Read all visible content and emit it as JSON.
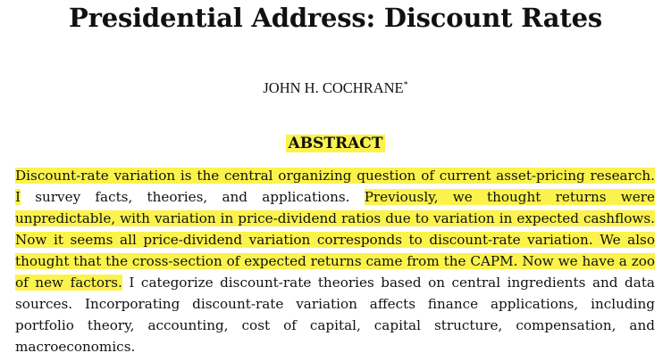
{
  "paper": {
    "title": "Presidential Address: Discount Rates",
    "author": "JOHN H. COCHRANE",
    "author_mark": "*",
    "abstract_heading": "ABSTRACT",
    "highlight_color": "#fbf34c",
    "abstract_segments": [
      {
        "text": "Discount-rate variation is the central organizing question of current asset-pricing research. I",
        "highlighted": true
      },
      {
        "text": " survey facts, theories, and applications. ",
        "highlighted": false
      },
      {
        "text": "Previously, we thought returns were unpredictable, with variation in price-dividend ratios due to variation in expected cashflows. Now it seems all price-dividend variation corresponds to discount-rate variation. We also thought that the cross-section of expected returns came from the CAPM. Now we have a zoo of new factors.",
        "highlighted": true
      },
      {
        "text": " I categorize discount-rate theories based on central ingredients and data sources. Incorporating discount-rate variation affects finance applications, including portfolio theory, accounting, cost of capital, capital structure, compensation, and macroeconomics.",
        "highlighted": false
      }
    ]
  }
}
